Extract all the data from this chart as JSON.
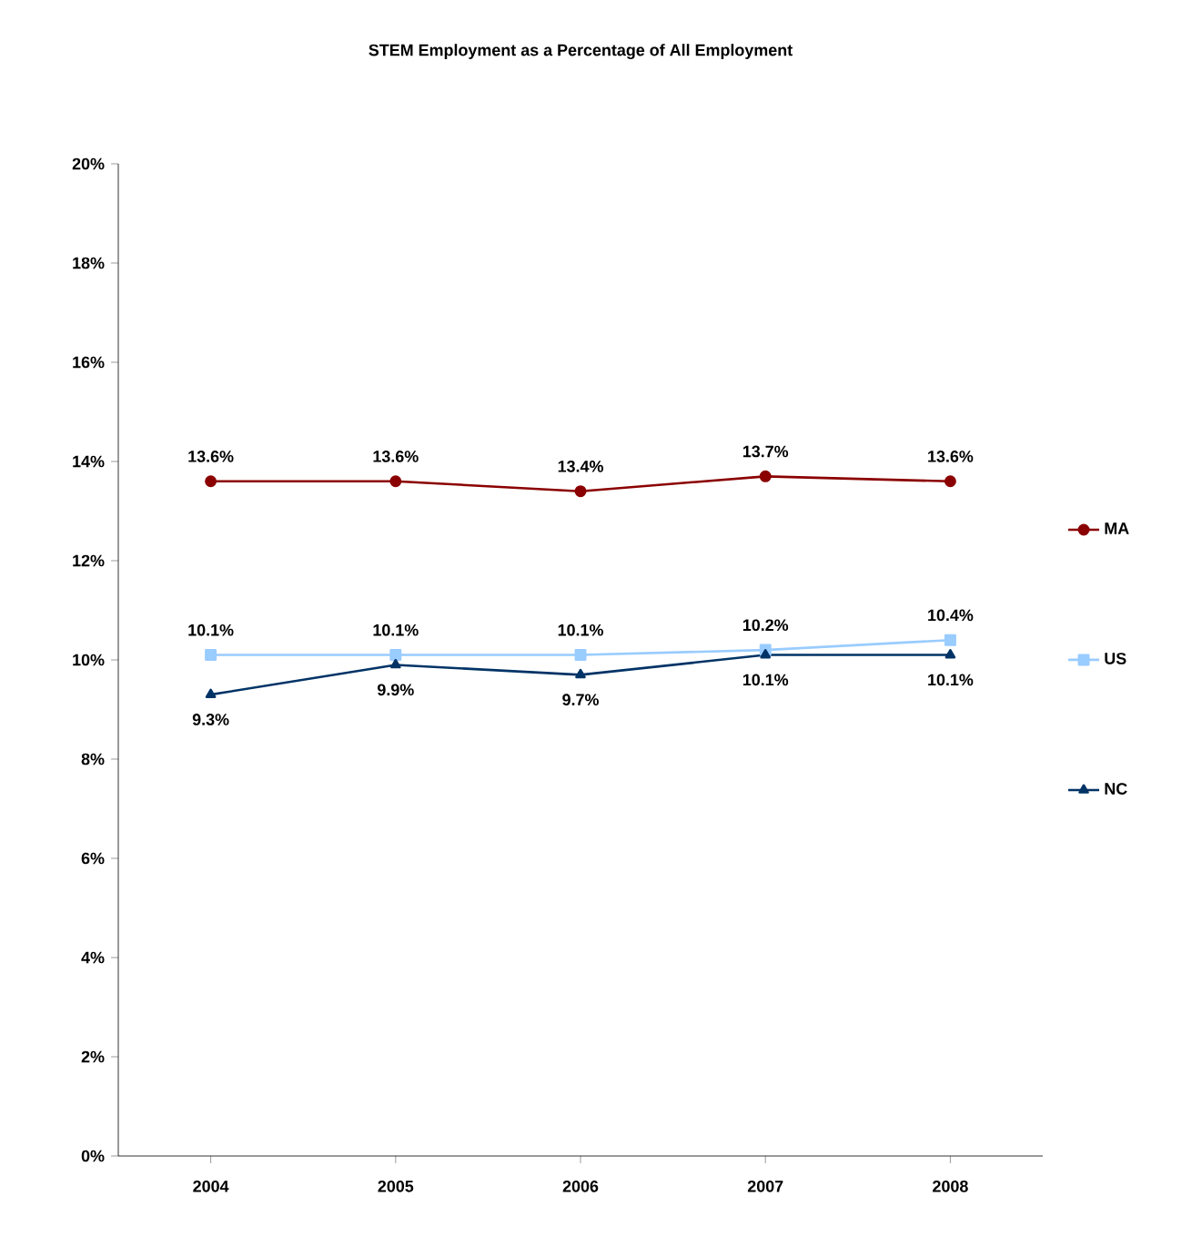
{
  "chart_data": {
    "type": "line",
    "title": "STEM Employment as a Percentage of All Employment",
    "categories": [
      "2004",
      "2005",
      "2006",
      "2007",
      "2008"
    ],
    "series": [
      {
        "name": "MA",
        "color": "#8b0000",
        "marker": "circle",
        "values": [
          13.6,
          13.6,
          13.4,
          13.7,
          13.6
        ],
        "value_labels": [
          "13.6%",
          "13.6%",
          "13.4%",
          "13.7%",
          "13.6%"
        ]
      },
      {
        "name": "US",
        "color": "#99ccff",
        "marker": "square",
        "values": [
          10.1,
          10.1,
          10.1,
          10.2,
          10.4
        ],
        "value_labels": [
          "10.1%",
          "10.1%",
          "10.1%",
          "10.2%",
          "10.4%"
        ]
      },
      {
        "name": "NC",
        "color": "#003366",
        "marker": "triangle",
        "values": [
          9.3,
          9.9,
          9.7,
          10.1,
          10.1
        ],
        "value_labels": [
          "9.3%",
          "9.9%",
          "9.7%",
          "10.1%",
          "10.1%"
        ]
      }
    ],
    "ylim": [
      0,
      20
    ],
    "yticks": [
      {
        "value": 0,
        "label": "0%"
      },
      {
        "value": 2,
        "label": "2%"
      },
      {
        "value": 4,
        "label": "4%"
      },
      {
        "value": 6,
        "label": "6%"
      },
      {
        "value": 8,
        "label": "8%"
      },
      {
        "value": 10,
        "label": "10%"
      },
      {
        "value": 12,
        "label": "12%"
      },
      {
        "value": 14,
        "label": "14%"
      },
      {
        "value": 16,
        "label": "16%"
      },
      {
        "value": 18,
        "label": "18%"
      },
      {
        "value": 20,
        "label": "20%"
      }
    ],
    "legend": "right",
    "grid": false
  }
}
